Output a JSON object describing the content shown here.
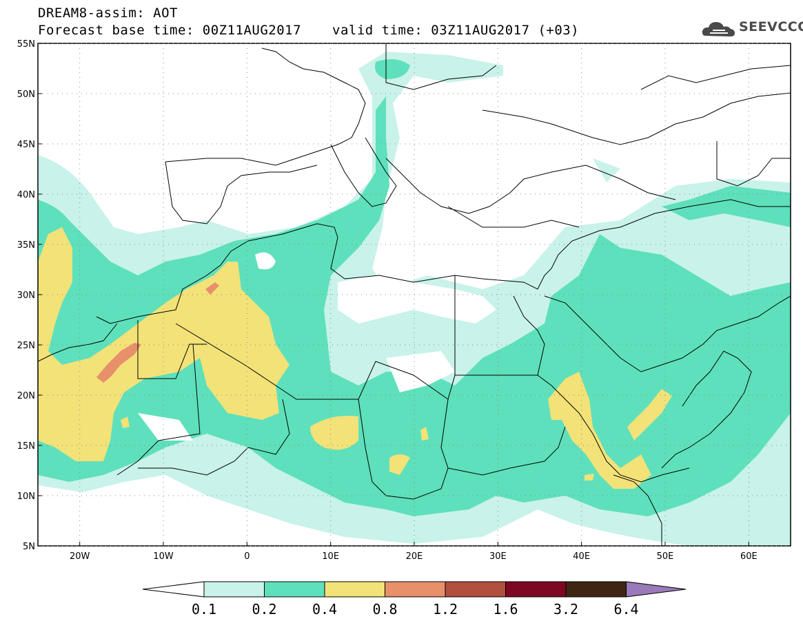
{
  "header": {
    "title": "DREAM8-assim: AOT",
    "base_time": "Forecast base time: 00Z11AUG2017",
    "valid_time": "valid time: 03Z11AUG2017 (+03)"
  },
  "logo": {
    "text": "SEEVCCC",
    "icon": "cloud-logo-icon"
  },
  "colors": {
    "c01": "#c8f2ea",
    "c02": "#5ee0bc",
    "c04": "#f2e278",
    "c08": "#e8906a",
    "c12": "#b0503e",
    "c16": "#7e0824",
    "c32": "#3e2612",
    "c64": "#9a7ab8",
    "land_border": "#000000"
  },
  "map": {
    "lon_range": [
      -25,
      65
    ],
    "lat_range": [
      5,
      55
    ],
    "lat_ticks": [
      {
        "value": 55,
        "label": "55N"
      },
      {
        "value": 50,
        "label": "50N"
      },
      {
        "value": 45,
        "label": "45N"
      },
      {
        "value": 40,
        "label": "40N"
      },
      {
        "value": 35,
        "label": "35N"
      },
      {
        "value": 30,
        "label": "30N"
      },
      {
        "value": 25,
        "label": "25N"
      },
      {
        "value": 20,
        "label": "20N"
      },
      {
        "value": 15,
        "label": "15N"
      },
      {
        "value": 10,
        "label": "10N"
      },
      {
        "value": 5,
        "label": "5N"
      }
    ],
    "lon_ticks": [
      {
        "value": -20,
        "label": "20W"
      },
      {
        "value": -10,
        "label": "10W"
      },
      {
        "value": 0,
        "label": "0"
      },
      {
        "value": 10,
        "label": "10E"
      },
      {
        "value": 20,
        "label": "20E"
      },
      {
        "value": 30,
        "label": "30E"
      },
      {
        "value": 40,
        "label": "40E"
      },
      {
        "value": 50,
        "label": "50E"
      },
      {
        "value": 60,
        "label": "60E"
      }
    ],
    "grid": "dotted"
  },
  "colorbar": {
    "labels": [
      "0.1",
      "0.2",
      "0.4",
      "0.8",
      "1.2",
      "1.6",
      "3.2",
      "6.4"
    ]
  }
}
